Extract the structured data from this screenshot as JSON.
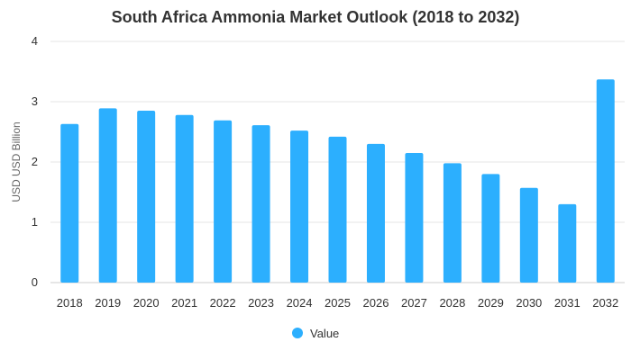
{
  "chart_data": {
    "type": "bar",
    "title": "South Africa Ammonia Market Outlook (2018 to 2032)",
    "xlabel": "",
    "ylabel": "USD USD Billion",
    "ylim": [
      0,
      4
    ],
    "yticks": [
      "0",
      "1",
      "2",
      "3",
      "4"
    ],
    "grid": true,
    "legend_position": "bottom",
    "categories": [
      "2018",
      "2019",
      "2020",
      "2021",
      "2022",
      "2023",
      "2024",
      "2025",
      "2026",
      "2027",
      "2028",
      "2029",
      "2030",
      "2031",
      "2032"
    ],
    "series": [
      {
        "name": "Value",
        "color": "#2caffe",
        "values": [
          2.63,
          2.89,
          2.85,
          2.78,
          2.69,
          2.61,
          2.52,
          2.42,
          2.3,
          2.15,
          1.98,
          1.8,
          1.57,
          1.3,
          3.37
        ]
      }
    ]
  }
}
